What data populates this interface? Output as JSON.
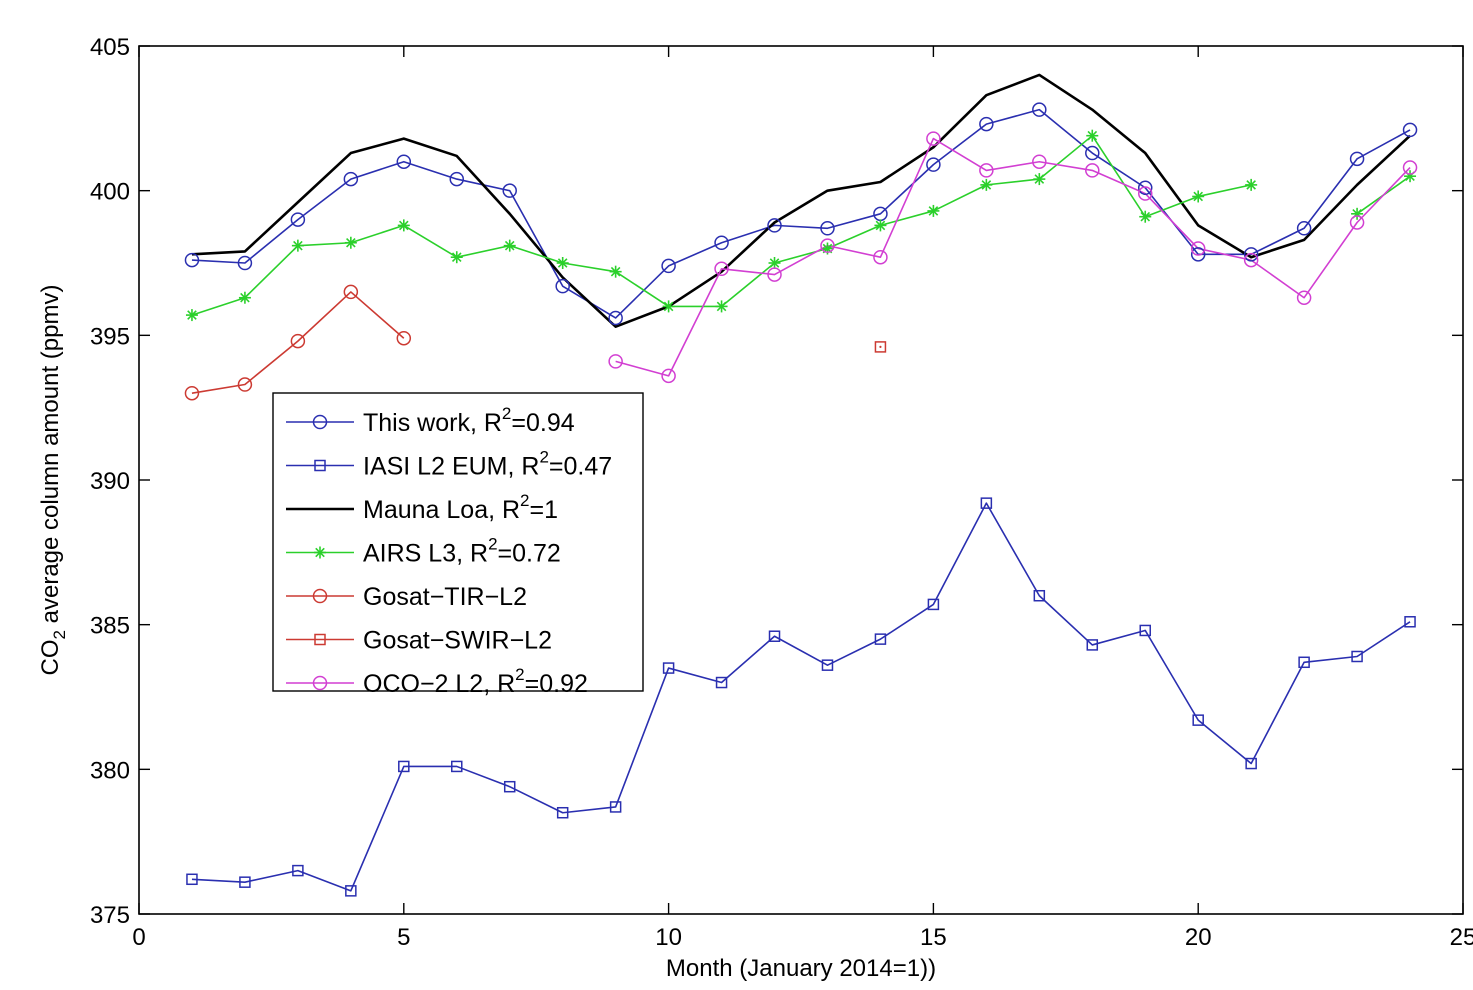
{
  "chart_data": {
    "type": "line",
    "xlabel": "Month (January 2014=1))",
    "ylabel_main": "CO",
    "ylabel_sub": "2",
    "ylabel_rest": " average column amount (ppmv)",
    "xlim": [
      0,
      25
    ],
    "ylim": [
      375,
      405
    ],
    "xticks": [
      "0",
      "5",
      "10",
      "15",
      "20",
      "25"
    ],
    "yticks": [
      "375",
      "380",
      "385",
      "390",
      "395",
      "400",
      "405"
    ],
    "grid": false,
    "legend_placement": "center-left",
    "series": [
      {
        "name": "This work, R",
        "sup": "2",
        "suffix": "=0.94",
        "color": "#2a2fb0",
        "marker": "circle",
        "line": true,
        "x": [
          1,
          2,
          3,
          4,
          5,
          6,
          7,
          8,
          9,
          10,
          11,
          12,
          13,
          14,
          15,
          16,
          17,
          18,
          19,
          20,
          21,
          22,
          23,
          24
        ],
        "y": [
          397.6,
          397.5,
          399.0,
          400.4,
          401.0,
          400.4,
          400.0,
          396.7,
          395.6,
          397.4,
          398.2,
          398.8,
          398.7,
          399.2,
          400.9,
          402.3,
          402.8,
          401.3,
          400.1,
          397.8,
          397.8,
          398.7,
          401.1,
          402.1
        ]
      },
      {
        "name": "IASI L2 EUM, R",
        "sup": "2",
        "suffix": "=0.47",
        "color": "#2a2fb0",
        "marker": "square",
        "line": true,
        "x": [
          1,
          2,
          3,
          4,
          5,
          6,
          7,
          8,
          9,
          10,
          11,
          12,
          13,
          14,
          15,
          16,
          17,
          18,
          19,
          20,
          21,
          22,
          23,
          24
        ],
        "y": [
          376.2,
          376.1,
          376.5,
          375.8,
          380.1,
          380.1,
          379.4,
          378.5,
          378.7,
          383.5,
          383.0,
          384.6,
          383.6,
          384.5,
          385.7,
          389.2,
          386.0,
          384.3,
          384.8,
          381.7,
          380.2,
          383.7,
          383.9,
          385.1
        ]
      },
      {
        "name": "Mauna Loa, R",
        "sup": "2",
        "suffix": "=1",
        "color": "#000000",
        "marker": "none",
        "line": true,
        "x": [
          1,
          2,
          3,
          4,
          5,
          6,
          7,
          8,
          9,
          10,
          11,
          12,
          13,
          14,
          15,
          16,
          17,
          18,
          19,
          20,
          21,
          22,
          23,
          24
        ],
        "y": [
          397.8,
          397.9,
          399.6,
          401.3,
          401.8,
          401.2,
          399.2,
          397.0,
          395.3,
          396.0,
          397.2,
          398.9,
          400.0,
          400.3,
          401.5,
          403.3,
          404.0,
          402.8,
          401.3,
          398.8,
          397.7,
          398.3,
          400.2,
          401.9
        ]
      },
      {
        "name": "AIRS L3, R",
        "sup": "2",
        "suffix": "=0.72",
        "color": "#2bd02b",
        "marker": "star",
        "line": true,
        "x": [
          1,
          2,
          3,
          4,
          5,
          6,
          7,
          8,
          9,
          10,
          11,
          12,
          13,
          14,
          15,
          16,
          17,
          18,
          19,
          20,
          21,
          null,
          23,
          24
        ],
        "y": [
          395.7,
          396.3,
          398.1,
          398.2,
          398.8,
          397.7,
          398.1,
          397.5,
          397.2,
          396.0,
          396.0,
          397.5,
          398.0,
          398.8,
          399.3,
          400.2,
          400.4,
          401.9,
          399.1,
          399.8,
          400.2,
          null,
          399.2,
          400.5
        ]
      },
      {
        "name": "Gosat−TIR−L2",
        "sup": "",
        "suffix": "",
        "color": "#cc3a32",
        "marker": "circle",
        "line": true,
        "x": [
          1,
          2,
          3,
          4,
          5
        ],
        "y": [
          393.0,
          393.3,
          394.8,
          396.5,
          394.9
        ]
      },
      {
        "name": "Gosat−SWIR−L2",
        "sup": "",
        "suffix": "",
        "color": "#cc3a32",
        "marker": "square",
        "line": true,
        "x": [
          14
        ],
        "y": [
          394.6
        ]
      },
      {
        "name": "OCO−2 L2, R",
        "sup": "2",
        "suffix": "=0.92",
        "color": "#d23fd2",
        "marker": "circle",
        "line": true,
        "x": [
          9,
          10,
          11,
          12,
          13,
          14,
          15,
          16,
          17,
          18,
          19,
          20,
          21,
          22,
          23,
          24
        ],
        "y": [
          394.1,
          393.6,
          397.3,
          397.1,
          398.1,
          397.7,
          401.8,
          400.7,
          401.0,
          400.7,
          399.9,
          398.0,
          397.6,
          396.3,
          398.9,
          400.8
        ]
      }
    ]
  }
}
